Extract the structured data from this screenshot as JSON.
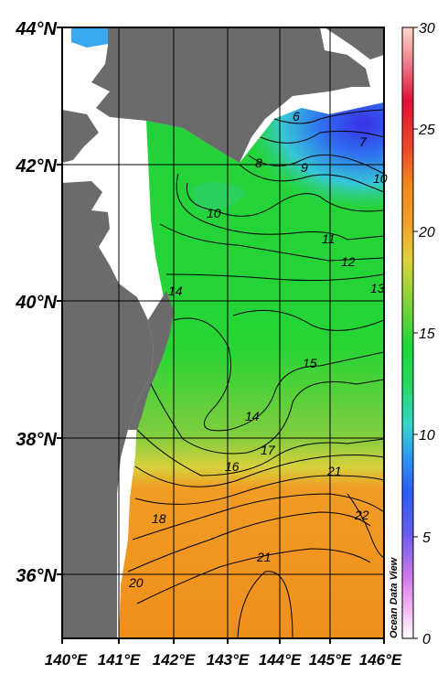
{
  "map": {
    "lat_labels": [
      "44°N",
      "42°N",
      "40°N",
      "38°N",
      "36°N"
    ],
    "lon_labels": [
      "140°E",
      "141°E",
      "142°E",
      "143°E",
      "144°E",
      "145°E",
      "146°E"
    ],
    "contour_labels": [
      "6",
      "7",
      "8",
      "9",
      "10",
      "10",
      "11",
      "12",
      "13",
      "14",
      "14",
      "15",
      "16",
      "17",
      "18",
      "20",
      "21",
      "21",
      "22"
    ],
    "credit": "Ocean Data View",
    "colors": {
      "land": "#6b6b6b",
      "background": "#ffffff"
    }
  },
  "colorbar": {
    "ticks": [
      "30",
      "25",
      "20",
      "15",
      "10",
      "5",
      "0"
    ],
    "range": [
      0,
      30
    ]
  }
}
